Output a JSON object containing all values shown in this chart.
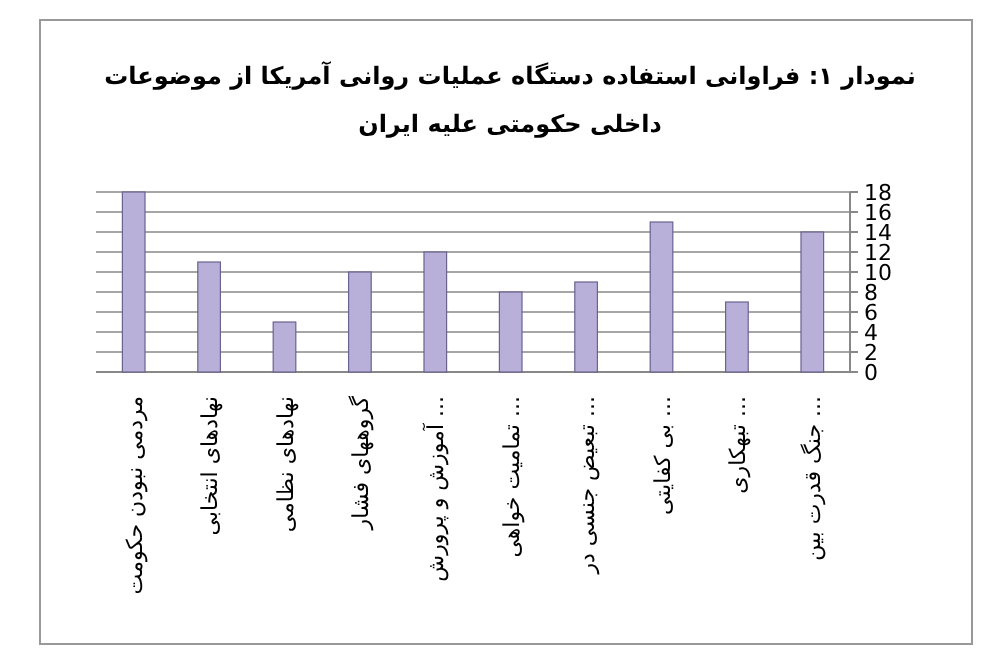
{
  "chart_data": {
    "type": "bar",
    "title": "نمودار ۱: فراوانی استفاده دستگاه عملیات روانی آمریکا از موضوعات\nداخلی حکومتی علیه ایران",
    "categories": [
      "مردمی نبودن حکومت",
      "نهادهای انتخابی",
      "نهادهای نظامی",
      "گروههای فشار",
      "آموزش و پرورش ...",
      "تمامیت خواهی ...",
      "تبعیض جنسی در ...",
      "بی کفایتی ...",
      "تبهکاری ...",
      "جنگ قدرت بین ..."
    ],
    "values": [
      18,
      11,
      5,
      10,
      12,
      8,
      9,
      15,
      7,
      14
    ],
    "color": "#b8b0d8",
    "ylim": [
      0,
      18
    ],
    "yticks": [
      0,
      2,
      4,
      6,
      8,
      10,
      12,
      14,
      16,
      18
    ],
    "grid": "y"
  }
}
